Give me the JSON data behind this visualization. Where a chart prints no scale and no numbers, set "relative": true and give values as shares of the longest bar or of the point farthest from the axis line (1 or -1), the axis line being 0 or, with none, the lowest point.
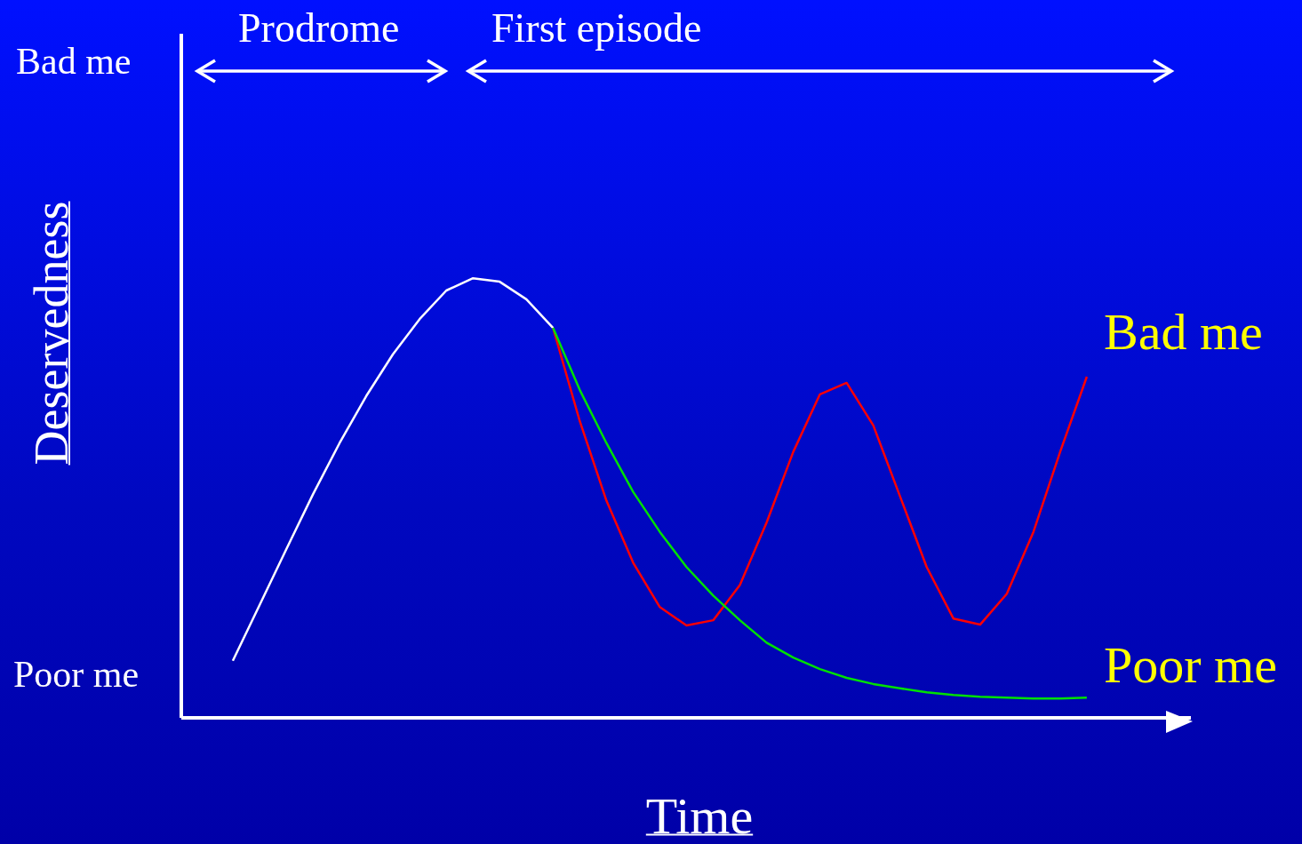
{
  "chart_data": {
    "type": "line",
    "relative": true,
    "xlabel": "Time",
    "ylabel": "Deservedness",
    "marker": "none",
    "line_style": "solid",
    "annotations": [
      "Bad me",
      "Poor me",
      "Prodrome",
      "First episode"
    ],
    "categories": [
      null,
      null,
      null,
      null,
      null,
      null,
      null,
      null,
      null,
      null,
      null,
      null,
      null,
      null,
      null,
      null,
      null,
      null,
      null,
      null,
      null,
      null,
      null,
      null,
      null,
      null,
      null,
      null,
      null,
      null,
      null,
      null,
      null
    ],
    "series": [
      {
        "color": "#ffffff",
        "values": [
          0.13,
          0.256,
          0.383,
          0.508,
          0.625,
          0.732,
          0.827,
          0.907,
          0.972,
          1.0,
          0.992,
          0.952,
          0.887,
          null,
          null,
          null,
          null,
          null,
          null,
          null,
          null,
          null,
          null,
          null,
          null,
          null,
          null,
          null,
          null,
          null,
          null,
          null,
          null
        ]
      },
      {
        "name": "Bad me",
        "color": "#ff0000",
        "values": [
          null,
          null,
          null,
          null,
          null,
          null,
          null,
          null,
          null,
          null,
          null,
          null,
          0.887,
          0.675,
          0.494,
          0.353,
          0.252,
          0.21,
          0.222,
          0.302,
          0.444,
          0.605,
          0.736,
          0.762,
          0.665,
          0.504,
          0.343,
          0.226,
          0.212,
          0.282,
          0.423,
          0.605,
          0.776
        ]
      },
      {
        "name": "Poor me",
        "color": "#00e000",
        "values": [
          null,
          null,
          null,
          null,
          null,
          null,
          null,
          null,
          null,
          null,
          null,
          null,
          0.887,
          0.746,
          0.625,
          0.514,
          0.423,
          0.343,
          0.278,
          0.222,
          0.171,
          0.137,
          0.111,
          0.091,
          0.077,
          0.067,
          0.058,
          0.052,
          0.048,
          0.046,
          0.044,
          0.044,
          0.046
        ]
      }
    ]
  }
}
